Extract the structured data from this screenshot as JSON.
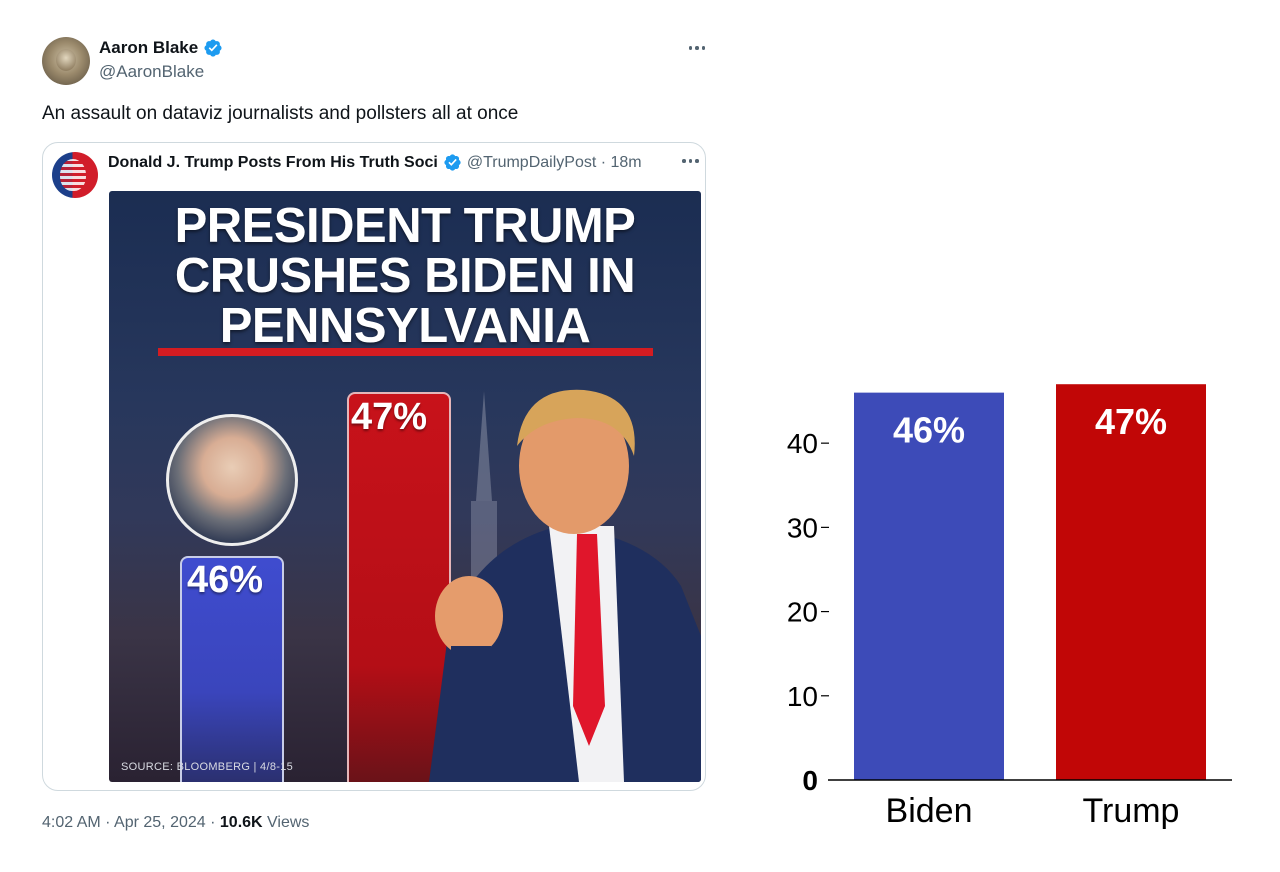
{
  "tweet": {
    "author_name": "Aaron Blake",
    "author_handle": "@AaronBlake",
    "text": "An assault on dataviz journalists and pollsters all at once",
    "timestamp": "4:02 AM · Apr 25, 2024 · ",
    "views_count": "10.6K",
    "views_label": " Views",
    "verified_color": "#1d9bf0"
  },
  "quoted_tweet": {
    "author_name": "Donald J. Trump Posts From His Truth Soci",
    "handle_time": "@TrumpDailyPost · 18m",
    "graphic": {
      "title_line1": "PRESIDENT TRUMP",
      "title_line2": "CRUSHES BIDEN IN",
      "title_line3": "PENNSYLVANIA",
      "biden_value": "46%",
      "trump_value": "47%",
      "source": "SOURCE: BLOOMBERG | 4/8-15"
    }
  },
  "chart_data": {
    "type": "bar",
    "categories": [
      "Biden",
      "Trump"
    ],
    "values": [
      46,
      47
    ],
    "data_labels": [
      "46%",
      "47%"
    ],
    "colors": [
      "#3d4bb8",
      "#c10606"
    ],
    "yticks": [
      0,
      10,
      20,
      30,
      40
    ],
    "ylim": [
      0,
      47.5
    ],
    "title": "",
    "xlabel": "",
    "ylabel": ""
  }
}
